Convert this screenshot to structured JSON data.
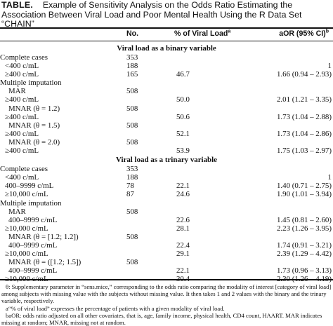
{
  "caption": {
    "label": "TABLE.",
    "text": "Example of Sensitivity Analysis on the Odds Ratio Estimating the Association Between Viral Load and Poor Mental Health Using the R Data Set “CHAIN”"
  },
  "headers": {
    "no": "No.",
    "pct": "% of Viral Load",
    "pct_sup": "a",
    "aor": "aOR (95% CI)",
    "aor_sup": "b"
  },
  "sections": [
    {
      "title": "Viral load as a binary variable",
      "rows": [
        {
          "label": "Complete cases",
          "indent": 0,
          "no": "353",
          "pct": "",
          "aor": ""
        },
        {
          "label": "<400 c/mL",
          "indent": 1,
          "no": "188",
          "pct": "",
          "aor": "1"
        },
        {
          "label": "≥400 c/mL",
          "indent": 1,
          "no": "165",
          "pct": "46.7",
          "aor": "1.66 (0.94 – 2.93)"
        },
        {
          "label": "Multiple imputation",
          "indent": 0,
          "no": "",
          "pct": "",
          "aor": ""
        },
        {
          "label": "MAR",
          "indent": 2,
          "no": "508",
          "pct": "",
          "aor": ""
        },
        {
          "label": "≥400 c/mL",
          "indent": 1,
          "no": "",
          "pct": "50.0",
          "aor": "2.01 (1.21 – 3.35)"
        },
        {
          "label": "MNAR (θ = 1.2)",
          "indent": 2,
          "no": "508",
          "pct": "",
          "aor": ""
        },
        {
          "label": "≥400 c/mL",
          "indent": 1,
          "no": "",
          "pct": "50.6",
          "aor": "1.73 (1.04 – 2.88)"
        },
        {
          "label": "MNAR (θ = 1.5)",
          "indent": 2,
          "no": "508",
          "pct": "",
          "aor": ""
        },
        {
          "label": "≥400 c/mL",
          "indent": 1,
          "no": "",
          "pct": "52.1",
          "aor": "1.73 (1.04 – 2.86)"
        },
        {
          "label": "MNAR (θ = 2.0)",
          "indent": 2,
          "no": "508",
          "pct": "",
          "aor": ""
        },
        {
          "label": "≥400 c/mL",
          "indent": 1,
          "no": "",
          "pct": "53.9",
          "aor": "1.75 (1.03 – 2.97)"
        }
      ]
    },
    {
      "title": "Viral load as a trinary variable",
      "rows": [
        {
          "label": "Complete cases",
          "indent": 0,
          "no": "353",
          "pct": "",
          "aor": ""
        },
        {
          "label": "<400 c/mL",
          "indent": 1,
          "no": "188",
          "pct": "",
          "aor": "1"
        },
        {
          "label": "400–9999 c/mL",
          "indent": 1,
          "no": "78",
          "pct": "22.1",
          "aor": "1.40 (0.71 – 2.75)"
        },
        {
          "label": "≥10,000 c/mL",
          "indent": 1,
          "no": "87",
          "pct": "24.6",
          "aor": "1.90 (1.01 – 3.94)"
        },
        {
          "label": "Multiple imputation",
          "indent": 0,
          "no": "",
          "pct": "",
          "aor": ""
        },
        {
          "label": "MAR",
          "indent": 2,
          "no": "508",
          "pct": "",
          "aor": ""
        },
        {
          "label": "400–9999 c/mL",
          "indent": 2,
          "no": "",
          "pct": "22.6",
          "aor": "1.45 (0.81 – 2.60)"
        },
        {
          "label": "≥10,000 c/mL",
          "indent": 1,
          "no": "",
          "pct": "28.1",
          "aor": "2.23 (1.26 – 3.95)"
        },
        {
          "label": "MNAR (θ = [1.2; 1.2])",
          "indent": 2,
          "no": "508",
          "pct": "",
          "aor": ""
        },
        {
          "label": "400–9999 c/mL",
          "indent": 2,
          "no": "",
          "pct": "22.4",
          "aor": "1.74 (0.91 – 3.21)"
        },
        {
          "label": "≥10,000 c/mL",
          "indent": 1,
          "no": "",
          "pct": "29.1",
          "aor": "2.39 (1.29 – 4.42)"
        },
        {
          "label": "MNAR (θ = ([1.2; 1.5])",
          "indent": 2,
          "no": "508",
          "pct": "",
          "aor": ""
        },
        {
          "label": "400–9999 c/mL",
          "indent": 2,
          "no": "",
          "pct": "22.1",
          "aor": "1.73 (0.96 – 3.13)"
        },
        {
          "label": "≥10,000 c/mL",
          "indent": 1,
          "no": "",
          "pct": "30.4",
          "aor": "2.30 (1.26 – 4.19)"
        }
      ]
    }
  ],
  "footnotes": [
    {
      "text": "θ: Supplementary parameter in “sens.mice,” corresponding to the odds ratio comparing the modality of interest [category of viral load] among subjects with missing value with the subjects without missing value. It then takes 1 and 2 values with the binary and the trinary variable, respectively."
    },
    {
      "text": "a“% of viral load” expresses the percentage of patients with a given modality of viral load."
    },
    {
      "text": "baOR: odds ratio adjusted on all other covariates, that is, age, family income, physical health, CD4 count, HAART. MAR indicates missing at random; MNAR, missing not at random."
    }
  ]
}
